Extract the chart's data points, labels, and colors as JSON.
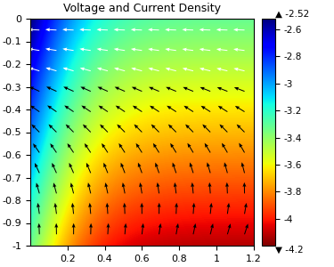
{
  "title": "Voltage and Current Density",
  "xlim": [
    0,
    1.2
  ],
  "ylim": [
    -1,
    0
  ],
  "xticks": [
    0.2,
    0.4,
    0.6,
    0.8,
    1.0,
    1.2
  ],
  "yticks": [
    0,
    -0.1,
    -0.2,
    -0.3,
    -0.4,
    -0.5,
    -0.6,
    -0.7,
    -0.8,
    -0.9,
    -1.0
  ],
  "ytick_labels": [
    "0",
    "-0.1",
    "-0.2",
    "-0.3",
    "-0.4",
    "-0.5",
    "-0.6",
    "-0.7",
    "-0.8",
    "-0.9",
    "-1"
  ],
  "xtick_labels": [
    "0.2",
    "0.4",
    "0.6",
    "0.8",
    "1",
    "1.2"
  ],
  "cbar_min": -4.2,
  "cbar_max": -2.52,
  "cbar_ticks": [
    -2.6,
    -2.8,
    -3.0,
    -3.2,
    -3.4,
    -3.6,
    -3.8,
    -4.0
  ],
  "cbar_tick_labels": [
    "-2.6",
    "-2.8",
    "-3",
    "-3.2",
    "-3.4",
    "-3.6",
    "-3.8",
    "-4"
  ],
  "cbar_top_label": "▲ -2.52",
  "cbar_bot_label": "▼ -4.2",
  "figsize": [
    3.75,
    3.0
  ],
  "dpi": 100
}
